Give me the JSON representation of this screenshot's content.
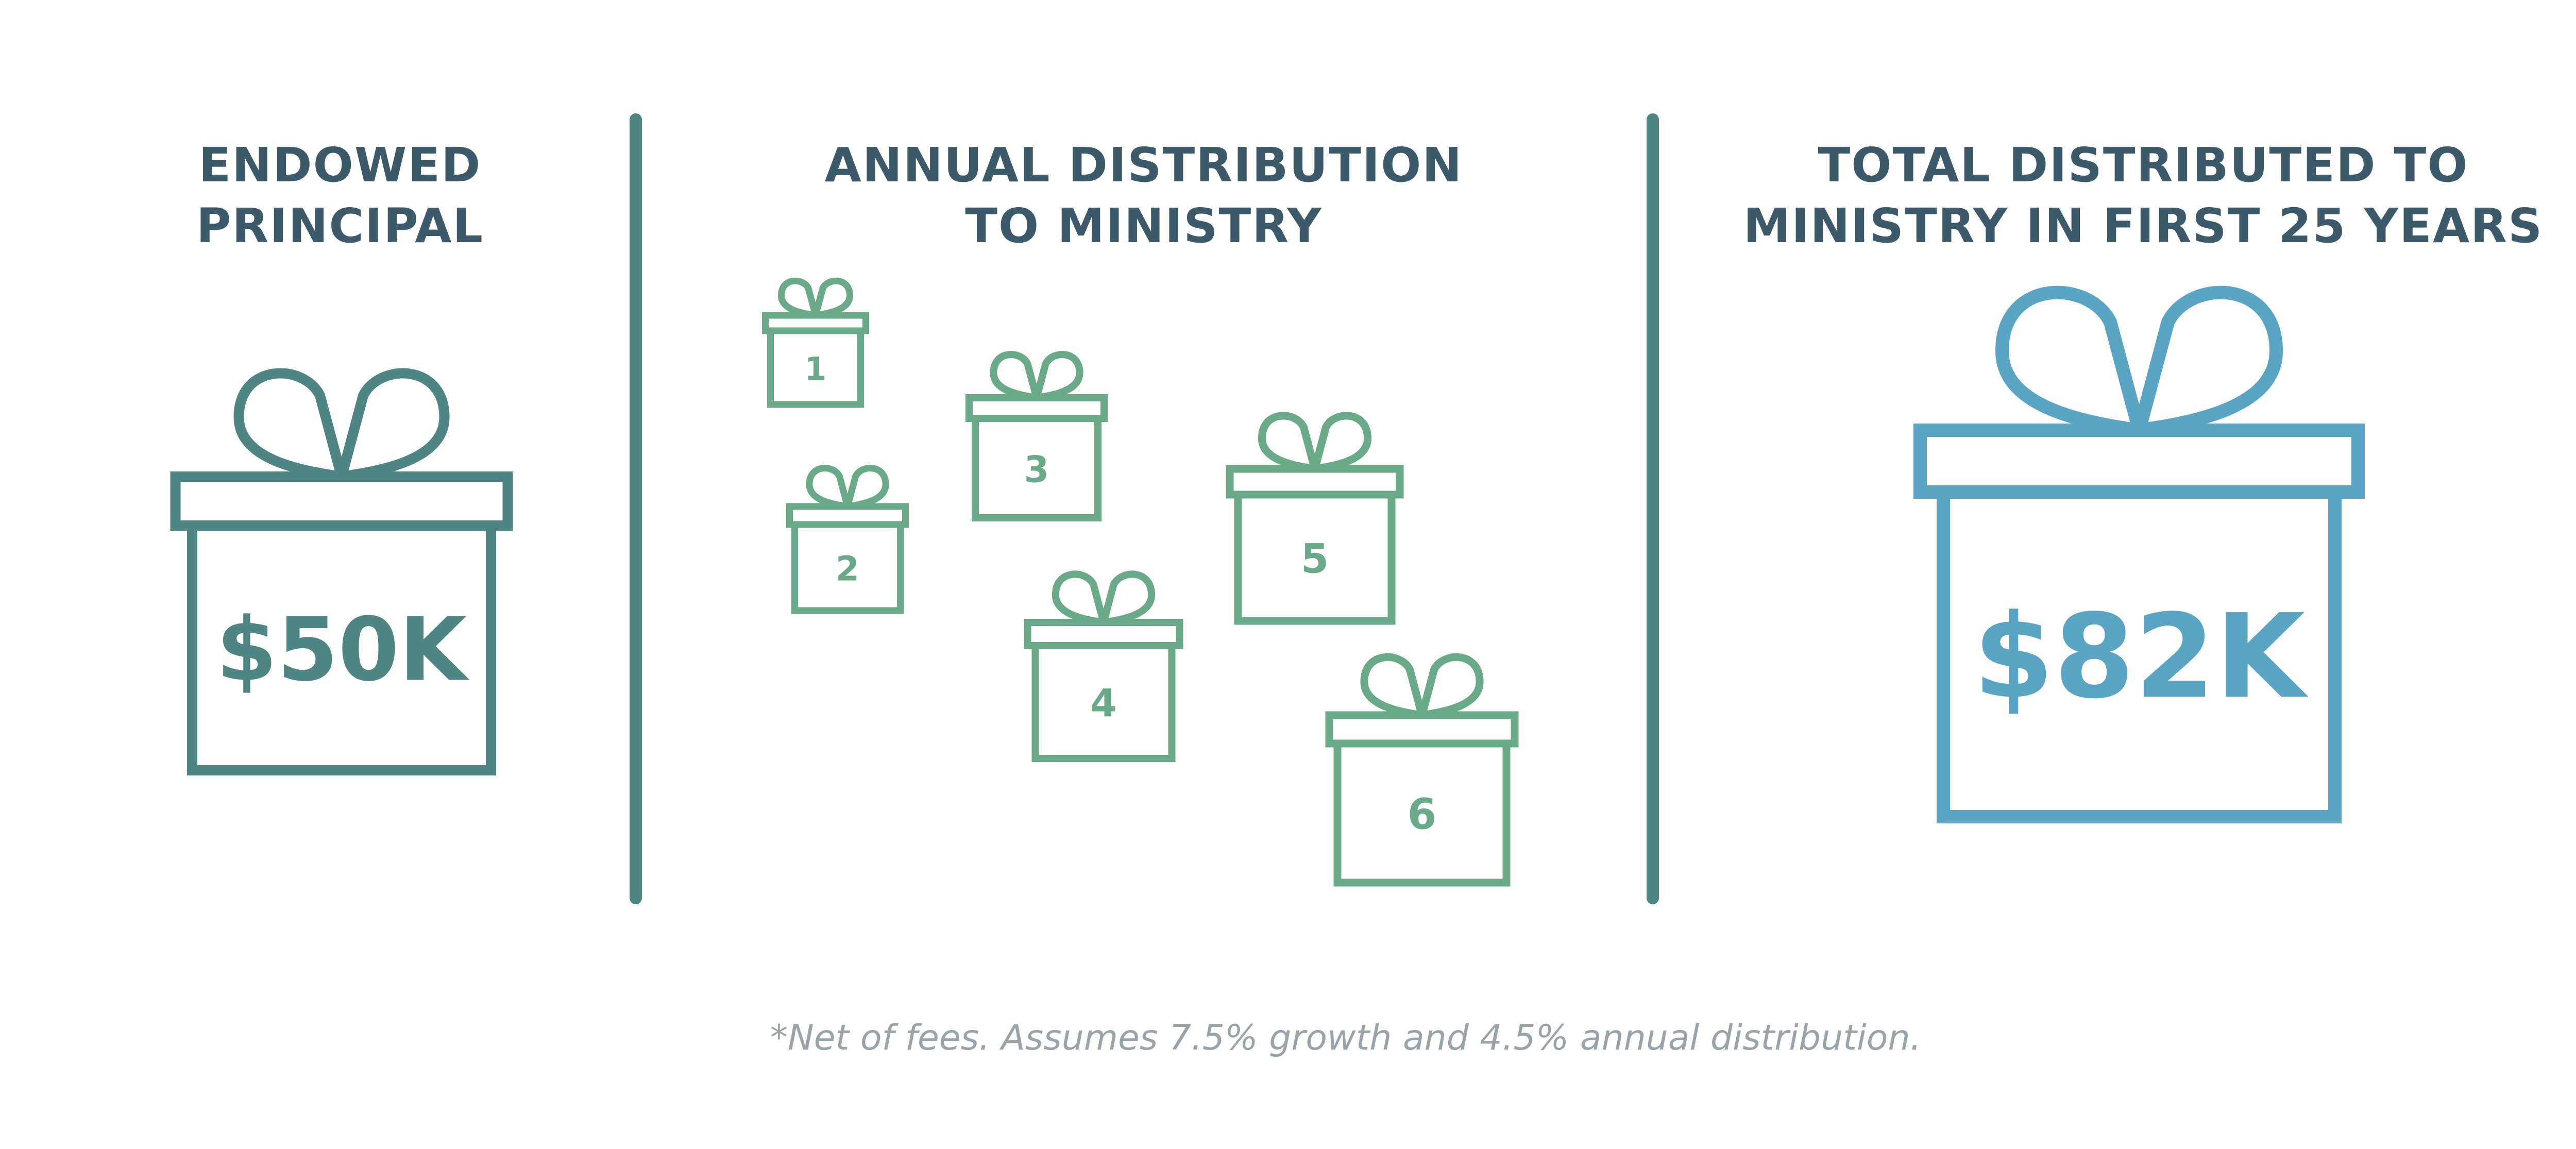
{
  "colors": {
    "heading": "#3d5a6b",
    "divider": "#4f8684",
    "endowed_gift": "#4f8684",
    "annual_gift": "#6aaa88",
    "total_gift": "#5aa5c3",
    "footnote": "#9aa3a8"
  },
  "sections": {
    "endowed": {
      "heading": [
        "ENDOWED",
        "PRINCIPAL"
      ],
      "amount": "$50K",
      "icon": "gift-icon"
    },
    "annual": {
      "heading": [
        "ANNUAL DISTRIBUTION",
        "TO MINISTRY"
      ],
      "gifts": [
        {
          "label": "1",
          "icon": "gift-icon"
        },
        {
          "label": "2",
          "icon": "gift-icon"
        },
        {
          "label": "3",
          "icon": "gift-icon"
        },
        {
          "label": "4",
          "icon": "gift-icon"
        },
        {
          "label": "5",
          "icon": "gift-icon"
        },
        {
          "label": "6",
          "icon": "gift-icon"
        }
      ]
    },
    "total": {
      "heading": [
        "TOTAL DISTRIBUTED TO",
        "MINISTRY IN FIRST 25 YEARS"
      ],
      "amount": "$82K",
      "icon": "gift-icon"
    }
  },
  "footnote": "*Net of fees. Assumes 7.5% growth and 4.5% annual distribution."
}
